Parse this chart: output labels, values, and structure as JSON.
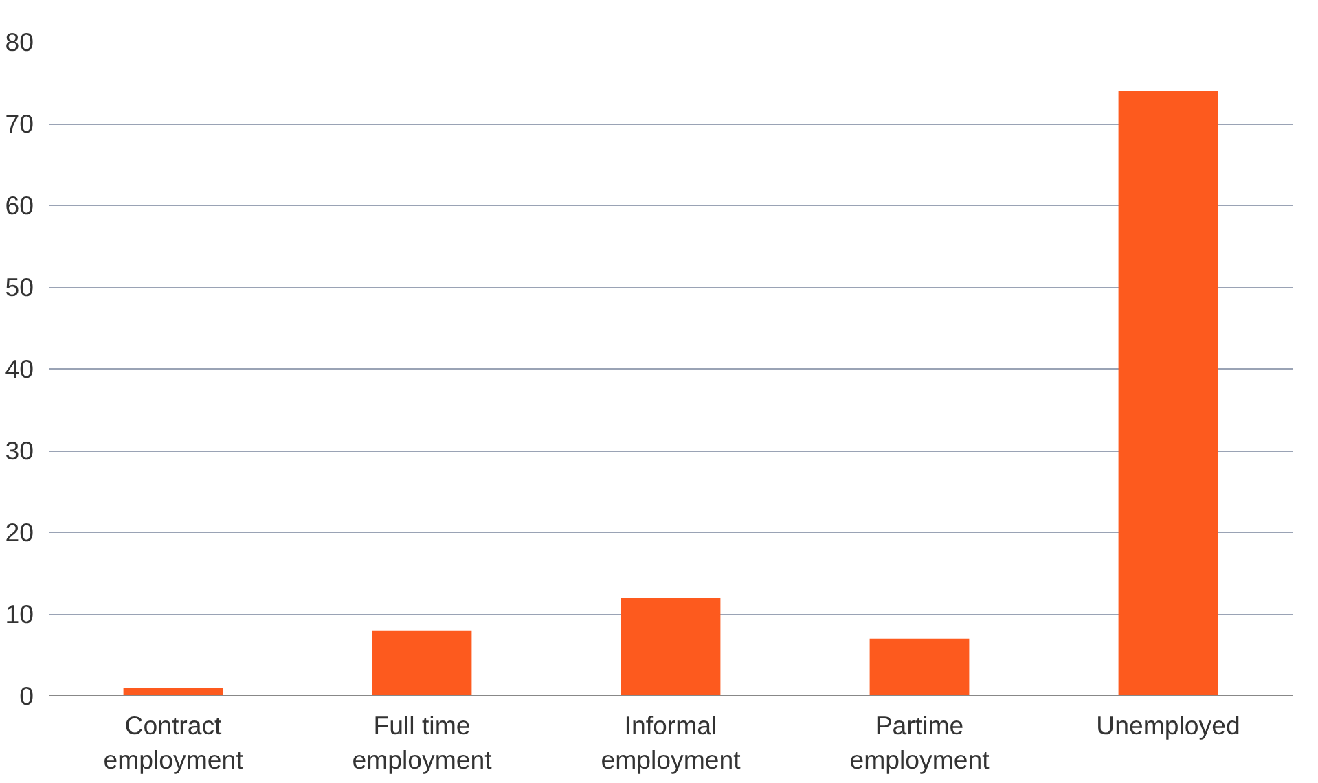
{
  "chart_data": {
    "type": "bar",
    "categories": [
      "Contract\nemployment",
      "Full time\nemployment",
      "Informal\nemployment",
      "Partime\nemployment",
      "Unemployed"
    ],
    "values": [
      1,
      8,
      12,
      7,
      74
    ],
    "color": "#fd5a1e",
    "ylim": [
      0,
      80
    ],
    "yticks": [
      0,
      10,
      20,
      30,
      40,
      50,
      60,
      70,
      80
    ],
    "grid": "y"
  }
}
